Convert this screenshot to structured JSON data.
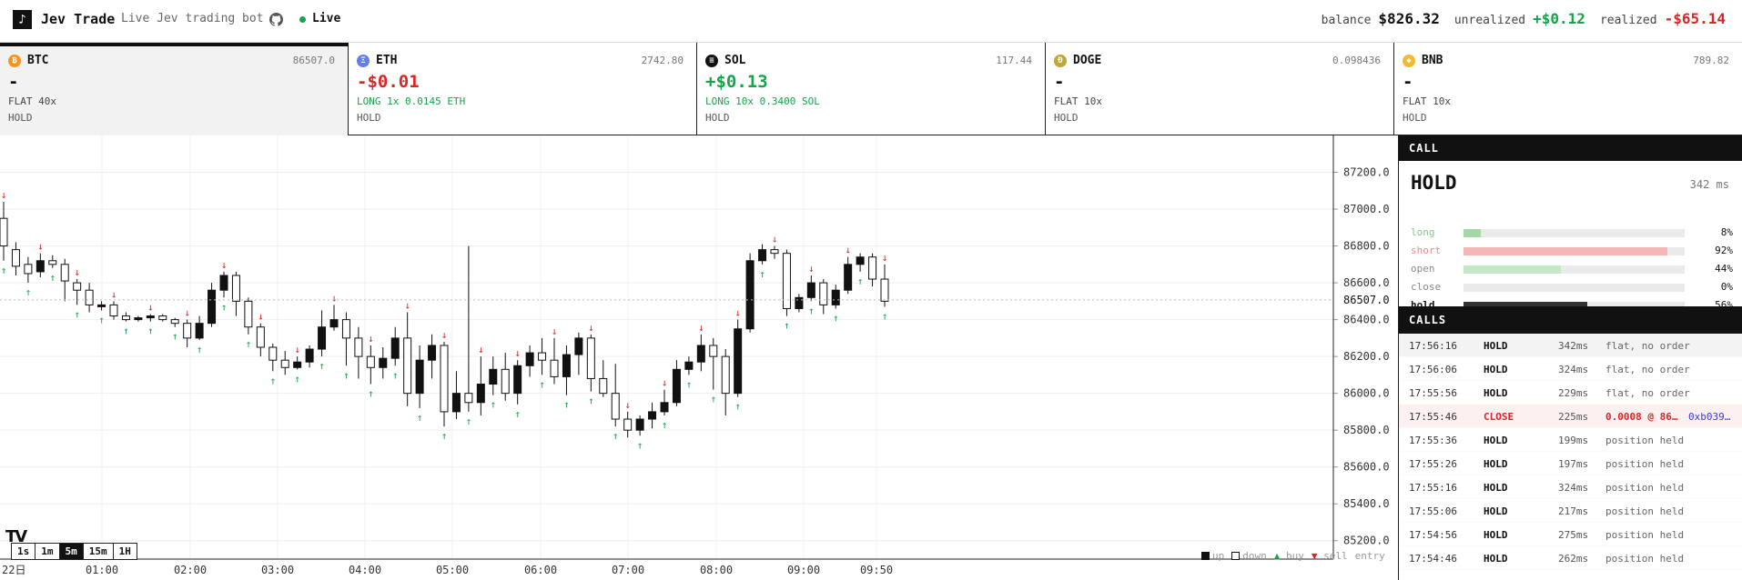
{
  "header": {
    "logo_glyph": "♪",
    "title": "Jev Trade",
    "subtitle": "Live Jev trading bot",
    "github_icon": "github-icon",
    "status": "Live",
    "status_color": "#16a34a",
    "balance_label": "balance",
    "balance": "$826.32",
    "unrealized_label": "unrealized",
    "unrealized": "+$0.12",
    "realized_label": "realized",
    "realized": "-$65.14"
  },
  "colors": {
    "green": "#16a34a",
    "red": "#dc2626",
    "blue": "#3b3bd1",
    "dark": "#111111"
  },
  "tickers": [
    {
      "symbol": "BTC",
      "price": "86507.0",
      "pnl": "-",
      "position": "FLAT 40x",
      "action": "HOLD",
      "icon_color": "#f7931a",
      "icon_glyph": "₿",
      "pnl_color": "#111111",
      "pos_color": "#444444",
      "active": true
    },
    {
      "symbol": "ETH",
      "price": "2742.80",
      "pnl": "-$0.01",
      "position": "LONG 1x 0.0145 ETH",
      "action": "HOLD",
      "icon_color": "#627eea",
      "icon_glyph": "Ξ",
      "pnl_color": "#dc2626",
      "pos_color": "#16a34a",
      "active": false
    },
    {
      "symbol": "SOL",
      "price": "117.44",
      "pnl": "+$0.13",
      "position": "LONG 10x 0.3400 SOL",
      "action": "HOLD",
      "icon_color": "#111111",
      "icon_glyph": "≡",
      "pnl_color": "#16a34a",
      "pos_color": "#16a34a",
      "active": false
    },
    {
      "symbol": "DOGE",
      "price": "0.098436",
      "pnl": "-",
      "position": "FLAT 10x",
      "action": "HOLD",
      "icon_color": "#c2a633",
      "icon_glyph": "Ð",
      "pnl_color": "#111111",
      "pos_color": "#444444",
      "active": false
    },
    {
      "symbol": "BNB",
      "price": "789.82",
      "pnl": "-",
      "position": "FLAT 10x",
      "action": "HOLD",
      "icon_color": "#f3ba2f",
      "icon_glyph": "◆",
      "pnl_color": "#111111",
      "pos_color": "#444444",
      "active": false
    }
  ],
  "chart": {
    "intervals": [
      "1s",
      "1m",
      "5m",
      "15m",
      "1H"
    ],
    "selected_interval": "5m",
    "tv_logo": "TV",
    "legend": {
      "up": "up",
      "down": "down",
      "buy": "buy",
      "sell": "sell",
      "entry": "entry"
    }
  },
  "chart_data": {
    "type": "candlestick",
    "symbol": "BTC",
    "y_ticks": [
      "87200.0",
      "87000.0",
      "86800.0",
      "86600.0",
      "86400.0",
      "86200.0",
      "86000.0",
      "85800.0",
      "85600.0",
      "85400.0",
      "85200.0"
    ],
    "ylim": [
      85100,
      87400
    ],
    "last_price": "86507.0",
    "x_ticks": [
      "22日",
      "01:00",
      "02:00",
      "03:00",
      "04:00",
      "05:00",
      "06:00",
      "07:00",
      "08:00",
      "09:00",
      "09:50"
    ],
    "candle_interval": "5m",
    "candles_ohlc": [
      [
        86950,
        86800,
        87040,
        86720
      ],
      [
        86780,
        86690,
        86820,
        86640
      ],
      [
        86700,
        86650,
        86740,
        86600
      ],
      [
        86660,
        86720,
        86760,
        86630
      ],
      [
        86720,
        86700,
        86750,
        86680
      ],
      [
        86700,
        86610,
        86730,
        86500
      ],
      [
        86600,
        86560,
        86620,
        86480
      ],
      [
        86560,
        86480,
        86600,
        86440
      ],
      [
        86470,
        86480,
        86500,
        86450
      ],
      [
        86480,
        86420,
        86500,
        86400
      ],
      [
        86420,
        86400,
        86440,
        86390
      ],
      [
        86400,
        86410,
        86420,
        86390
      ],
      [
        86410,
        86420,
        86430,
        86390
      ],
      [
        86420,
        86400,
        86430,
        86390
      ],
      [
        86400,
        86380,
        86410,
        86360
      ],
      [
        86380,
        86300,
        86400,
        86250
      ],
      [
        86300,
        86380,
        86420,
        86290
      ],
      [
        86380,
        86560,
        86600,
        86360
      ],
      [
        86560,
        86640,
        86660,
        86520
      ],
      [
        86640,
        86500,
        86660,
        86420
      ],
      [
        86500,
        86360,
        86520,
        86320
      ],
      [
        86360,
        86250,
        86380,
        86200
      ],
      [
        86250,
        86180,
        86270,
        86120
      ],
      [
        86180,
        86140,
        86230,
        86100
      ],
      [
        86140,
        86170,
        86200,
        86130
      ],
      [
        86170,
        86240,
        86260,
        86140
      ],
      [
        86240,
        86360,
        86450,
        86200
      ],
      [
        86360,
        86400,
        86480,
        86340
      ],
      [
        86400,
        86300,
        86440,
        86150
      ],
      [
        86300,
        86200,
        86360,
        86080
      ],
      [
        86200,
        86140,
        86260,
        86050
      ],
      [
        86140,
        86190,
        86250,
        86080
      ],
      [
        86190,
        86300,
        86360,
        86150
      ],
      [
        86300,
        86000,
        86440,
        85930
      ],
      [
        86000,
        86180,
        86260,
        85920
      ],
      [
        86180,
        86260,
        86320,
        86080
      ],
      [
        86260,
        85900,
        86280,
        85820
      ],
      [
        85900,
        86000,
        86120,
        85860
      ],
      [
        86000,
        85950,
        86800,
        85900
      ],
      [
        85950,
        86050,
        86200,
        85880
      ],
      [
        86050,
        86130,
        86200,
        85990
      ],
      [
        86130,
        86000,
        86220,
        85960
      ],
      [
        86000,
        86150,
        86180,
        85940
      ],
      [
        86150,
        86220,
        86260,
        86090
      ],
      [
        86220,
        86180,
        86300,
        86100
      ],
      [
        86180,
        86090,
        86300,
        86050
      ],
      [
        86090,
        86210,
        86260,
        85990
      ],
      [
        86210,
        86300,
        86330,
        86100
      ],
      [
        86300,
        86080,
        86320,
        86010
      ],
      [
        86080,
        86000,
        86180,
        85980
      ],
      [
        86000,
        85860,
        86160,
        85820
      ],
      [
        85860,
        85800,
        85900,
        85760
      ],
      [
        85800,
        85860,
        85880,
        85770
      ],
      [
        85860,
        85900,
        85950,
        85810
      ],
      [
        85900,
        85950,
        86020,
        85880
      ],
      [
        85950,
        86130,
        86180,
        85930
      ],
      [
        86130,
        86170,
        86200,
        86100
      ],
      [
        86170,
        86260,
        86320,
        86120
      ],
      [
        86260,
        86200,
        86300,
        86020
      ],
      [
        86200,
        86000,
        86240,
        85880
      ],
      [
        86000,
        86350,
        86400,
        85980
      ],
      [
        86350,
        86720,
        86760,
        86330
      ],
      [
        86720,
        86780,
        86810,
        86700
      ],
      [
        86780,
        86760,
        86800,
        86730
      ],
      [
        86760,
        86460,
        86780,
        86420
      ],
      [
        86460,
        86520,
        86540,
        86440
      ],
      [
        86520,
        86600,
        86640,
        86500
      ],
      [
        86600,
        86480,
        86620,
        86430
      ],
      [
        86480,
        86560,
        86590,
        86460
      ],
      [
        86560,
        86700,
        86740,
        86540
      ],
      [
        86700,
        86740,
        86760,
        86660
      ],
      [
        86740,
        86620,
        86760,
        86580
      ],
      [
        86620,
        86500,
        86700,
        86470
      ]
    ],
    "legend": [
      "up",
      "down",
      "buy",
      "sell",
      "entry"
    ],
    "grid": true
  },
  "call": {
    "section_title": "CALL",
    "action": "HOLD",
    "latency": "342 ms",
    "probs": [
      {
        "label": "long",
        "value": "8%",
        "frac": 0.08,
        "color": "#a5d6a7",
        "label_color": "#8bc48f"
      },
      {
        "label": "short",
        "value": "92%",
        "frac": 0.92,
        "color": "#f4b6b6",
        "label_color": "#e08e8e"
      },
      {
        "label": "open",
        "value": "44%",
        "frac": 0.44,
        "color": "#c5e6c7",
        "label_color": "#888888"
      },
      {
        "label": "close",
        "value": "0%",
        "frac": 0.0,
        "color": "#c5e6c7",
        "label_color": "#888888"
      },
      {
        "label": "hold",
        "value": "56%",
        "frac": 0.56,
        "color": "#333333",
        "label_color": "#111111"
      }
    ]
  },
  "calls": {
    "section_title": "CALLS",
    "rows": [
      {
        "time": "17:56:16",
        "action": "HOLD",
        "ms": "342ms",
        "note": "flat, no order",
        "tx": "",
        "action_color": "#111111",
        "note_color": "#666666",
        "highlight": false
      },
      {
        "time": "17:56:06",
        "action": "HOLD",
        "ms": "324ms",
        "note": "flat, no order",
        "tx": "",
        "action_color": "#111111",
        "note_color": "#666666",
        "highlight": false
      },
      {
        "time": "17:55:56",
        "action": "HOLD",
        "ms": "229ms",
        "note": "flat, no order",
        "tx": "",
        "action_color": "#111111",
        "note_color": "#666666",
        "highlight": false
      },
      {
        "time": "17:55:46",
        "action": "CLOSE",
        "ms": "225ms",
        "note": "0.0008 @ 86…",
        "tx": "0xb039…",
        "action_color": "#dc2626",
        "note_color": "#dc2626",
        "highlight": true
      },
      {
        "time": "17:55:36",
        "action": "HOLD",
        "ms": "199ms",
        "note": "position held",
        "tx": "",
        "action_color": "#111111",
        "note_color": "#666666",
        "highlight": false
      },
      {
        "time": "17:55:26",
        "action": "HOLD",
        "ms": "197ms",
        "note": "position held",
        "tx": "",
        "action_color": "#111111",
        "note_color": "#666666",
        "highlight": false
      },
      {
        "time": "17:55:16",
        "action": "HOLD",
        "ms": "324ms",
        "note": "position held",
        "tx": "",
        "action_color": "#111111",
        "note_color": "#666666",
        "highlight": false
      },
      {
        "time": "17:55:06",
        "action": "HOLD",
        "ms": "217ms",
        "note": "position held",
        "tx": "",
        "action_color": "#111111",
        "note_color": "#666666",
        "highlight": false
      },
      {
        "time": "17:54:56",
        "action": "HOLD",
        "ms": "275ms",
        "note": "position held",
        "tx": "",
        "action_color": "#111111",
        "note_color": "#666666",
        "highlight": false
      },
      {
        "time": "17:54:46",
        "action": "HOLD",
        "ms": "262ms",
        "note": "position held",
        "tx": "",
        "action_color": "#111111",
        "note_color": "#666666",
        "highlight": false
      }
    ]
  }
}
